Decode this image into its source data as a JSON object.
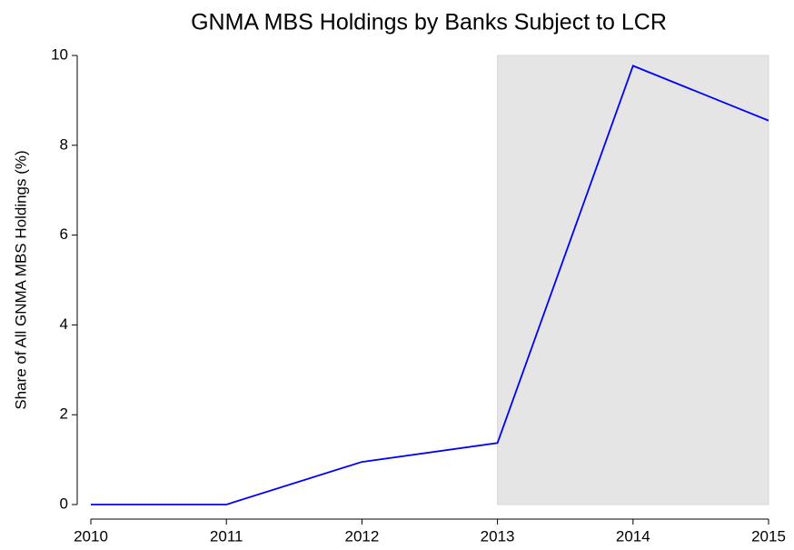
{
  "chart_data": {
    "type": "line",
    "title": "GNMA MBS Holdings by Banks Subject to LCR",
    "y_label": "Share of All GNMA MBS Holdings (%)",
    "x": [
      2010,
      2011,
      2012,
      2013,
      2014,
      2015
    ],
    "series": [
      {
        "color": "#0000ff",
        "values": [
          0,
          0,
          0.95,
          1.37,
          9.77,
          8.55
        ]
      }
    ],
    "xlim": [
      2010,
      2015
    ],
    "xticks": [
      2010,
      2011,
      2012,
      2013,
      2014,
      2015
    ],
    "ylim": [
      0,
      10
    ],
    "yticks": [
      0,
      2,
      4,
      6,
      8,
      10
    ],
    "shaded_region": {
      "x": [
        2013,
        2015
      ],
      "y": [
        0,
        10
      ],
      "color": "#e5e5e5"
    }
  }
}
